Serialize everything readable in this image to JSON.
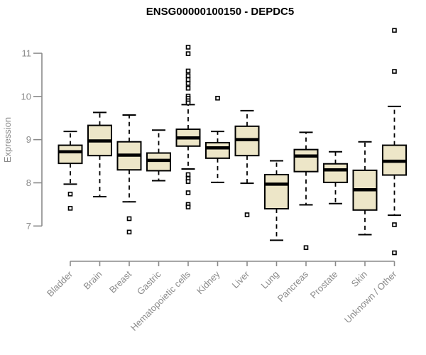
{
  "title": "ENSG00000100150 - DEPDC5",
  "colors": {
    "background": "#ffffff",
    "box_fill": "#ede6c8",
    "box_stroke": "#000000",
    "median": "#000000",
    "whisker": "#000000",
    "outlier_stroke": "#000000",
    "outlier_fill": "#ffffff",
    "axis": "#8a8a8a",
    "tick_text": "#8a8a8a",
    "title_text": "#000000"
  },
  "chart_data": {
    "type": "boxplot",
    "title": "ENSG00000100150 - DEPDC5",
    "xlabel": "",
    "ylabel": "Expression",
    "ylim": [
      6.3,
      11.6
    ],
    "yticks": [
      7,
      8,
      9,
      10,
      11
    ],
    "ytick_labels": [
      "7",
      "8",
      "9",
      "10",
      "11"
    ],
    "grid": false,
    "legend": "none",
    "categories": [
      "Bladder",
      "Brain",
      "Breast",
      "Gastric",
      "Hematopoietic cells",
      "Kidney",
      "Liver",
      "Lung",
      "Pancreas",
      "Prostate",
      "Skin",
      "Unknown / Other"
    ],
    "series": [
      {
        "name": "Bladder",
        "whisker_low": 7.97,
        "q1": 8.45,
        "median": 8.72,
        "q3": 8.87,
        "whisker_high": 9.19,
        "outliers": [
          7.74,
          7.41
        ]
      },
      {
        "name": "Brain",
        "whisker_low": 7.68,
        "q1": 8.63,
        "median": 8.97,
        "q3": 9.33,
        "whisker_high": 9.63,
        "outliers": []
      },
      {
        "name": "Breast",
        "whisker_low": 7.56,
        "q1": 8.3,
        "median": 8.64,
        "q3": 8.95,
        "whisker_high": 9.57,
        "outliers": [
          7.17,
          6.86
        ]
      },
      {
        "name": "Gastric",
        "whisker_low": 8.05,
        "q1": 8.28,
        "median": 8.52,
        "q3": 8.69,
        "whisker_high": 9.22,
        "outliers": []
      },
      {
        "name": "Hematopoietic cells",
        "whisker_low": 8.32,
        "q1": 8.85,
        "median": 9.04,
        "q3": 9.24,
        "whisker_high": 9.81,
        "outliers": [
          11.14,
          10.99,
          10.59,
          10.48,
          10.39,
          10.3,
          10.19,
          10.01,
          9.96,
          9.9,
          9.85,
          8.19,
          8.1,
          8.03,
          7.77,
          7.5,
          7.44
        ]
      },
      {
        "name": "Kidney",
        "whisker_low": 8.01,
        "q1": 8.57,
        "median": 8.81,
        "q3": 8.93,
        "whisker_high": 9.19,
        "outliers": [
          9.96
        ]
      },
      {
        "name": "Liver",
        "whisker_low": 7.99,
        "q1": 8.63,
        "median": 9.0,
        "q3": 9.31,
        "whisker_high": 9.67,
        "outliers": [
          7.26
        ]
      },
      {
        "name": "Lung",
        "whisker_low": 6.67,
        "q1": 7.4,
        "median": 7.97,
        "q3": 8.19,
        "whisker_high": 8.51,
        "outliers": []
      },
      {
        "name": "Pancreas",
        "whisker_low": 7.49,
        "q1": 8.26,
        "median": 8.62,
        "q3": 8.77,
        "whisker_high": 9.17,
        "outliers": [
          6.5
        ]
      },
      {
        "name": "Prostate",
        "whisker_low": 7.52,
        "q1": 8.01,
        "median": 8.3,
        "q3": 8.44,
        "whisker_high": 8.72,
        "outliers": []
      },
      {
        "name": "Skin",
        "whisker_low": 6.8,
        "q1": 7.37,
        "median": 7.84,
        "q3": 8.29,
        "whisker_high": 8.95,
        "outliers": []
      },
      {
        "name": "Unknown / Other",
        "whisker_low": 7.25,
        "q1": 8.18,
        "median": 8.5,
        "q3": 8.87,
        "whisker_high": 9.77,
        "outliers": [
          11.53,
          10.58,
          7.03,
          6.38
        ]
      }
    ]
  }
}
